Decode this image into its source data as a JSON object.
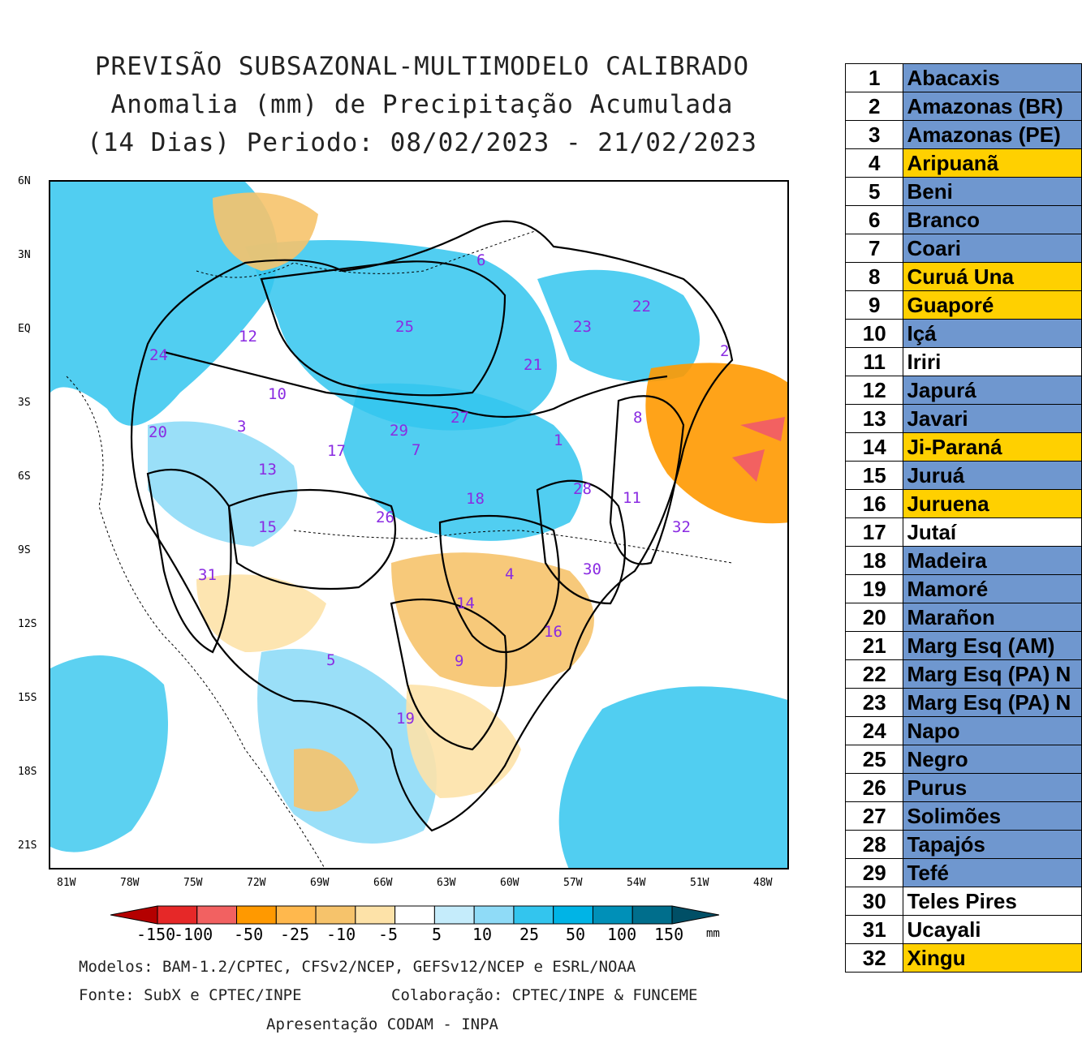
{
  "title": {
    "line1": "PREVISÃO SUBSAZONAL-MULTIMODELO CALIBRADO",
    "line2": "Anomalia (mm) de Precipitação Acumulada",
    "line3": "(14 Dias) Periodo: 08/02/2023 - 21/02/2023"
  },
  "map": {
    "lat_labels": [
      "6N",
      "3N",
      "EQ",
      "3S",
      "6S",
      "9S",
      "12S",
      "15S",
      "18S",
      "21S"
    ],
    "lon_labels": [
      "81W",
      "78W",
      "75W",
      "72W",
      "69W",
      "66W",
      "63W",
      "60W",
      "57W",
      "54W",
      "51W",
      "48W"
    ],
    "basin_numbers": [
      "1",
      "2",
      "3",
      "4",
      "5",
      "6",
      "7",
      "8",
      "9",
      "10",
      "11",
      "12",
      "13",
      "14",
      "15",
      "16",
      "17",
      "18",
      "19",
      "20",
      "21",
      "22",
      "23",
      "24",
      "25",
      "26",
      "27",
      "28",
      "29",
      "30",
      "31",
      "32"
    ]
  },
  "colorbar": {
    "labels": [
      "-150",
      "-100",
      "-50",
      "-25",
      "-10",
      "-5",
      "5",
      "10",
      "25",
      "50",
      "100",
      "150"
    ],
    "unit": "mm",
    "colors": [
      "#b40000",
      "#e62828",
      "#f26161",
      "#ff9900",
      "#ffb84d",
      "#f6c36b",
      "#fde2a8",
      "#ffffff",
      "#c5ecfb",
      "#8fdbf7",
      "#33c5ee",
      "#00b4e6",
      "#0090b8",
      "#006e8c",
      "#004f66"
    ]
  },
  "footer": {
    "models": "Modelos: BAM-1.2/CPTEC, CFSv2/NCEP, GEFSv12/NCEP e ESRL/NOAA",
    "source": "Fonte: SubX e CPTEC/INPE",
    "collab": "Colaboração: CPTEC/INPE & FUNCEME",
    "presentation": "Apresentação CODAM - INPA"
  },
  "legend": {
    "rows": [
      {
        "num": "1",
        "name": "Abacaxis",
        "color": "#6f97cf"
      },
      {
        "num": "2",
        "name": "Amazonas (BR)",
        "color": "#6f97cf"
      },
      {
        "num": "3",
        "name": "Amazonas (PE)",
        "color": "#6f97cf"
      },
      {
        "num": "4",
        "name": "Aripuanã",
        "color": "#ffd000"
      },
      {
        "num": "5",
        "name": "Beni",
        "color": "#6f97cf"
      },
      {
        "num": "6",
        "name": "Branco",
        "color": "#6f97cf"
      },
      {
        "num": "7",
        "name": "Coari",
        "color": "#6f97cf"
      },
      {
        "num": "8",
        "name": "Curuá Una",
        "color": "#ffd000"
      },
      {
        "num": "9",
        "name": "Guaporé",
        "color": "#ffd000"
      },
      {
        "num": "10",
        "name": "Içá",
        "color": "#6f97cf"
      },
      {
        "num": "11",
        "name": "Iriri",
        "color": "#ffffff"
      },
      {
        "num": "12",
        "name": "Japurá",
        "color": "#6f97cf"
      },
      {
        "num": "13",
        "name": "Javari",
        "color": "#6f97cf"
      },
      {
        "num": "14",
        "name": "Ji-Paraná",
        "color": "#ffd000"
      },
      {
        "num": "15",
        "name": "Juruá",
        "color": "#6f97cf"
      },
      {
        "num": "16",
        "name": "Juruena",
        "color": "#ffd000"
      },
      {
        "num": "17",
        "name": "Jutaí",
        "color": "#ffffff"
      },
      {
        "num": "18",
        "name": "Madeira",
        "color": "#6f97cf"
      },
      {
        "num": "19",
        "name": "Mamoré",
        "color": "#6f97cf"
      },
      {
        "num": "20",
        "name": "Marañon",
        "color": "#6f97cf"
      },
      {
        "num": "21",
        "name": "Marg Esq (AM)",
        "color": "#6f97cf"
      },
      {
        "num": "22",
        "name": "Marg Esq (PA) N",
        "color": "#6f97cf"
      },
      {
        "num": "23",
        "name": "Marg Esq (PA) N",
        "color": "#6f97cf"
      },
      {
        "num": "24",
        "name": "Napo",
        "color": "#6f97cf"
      },
      {
        "num": "25",
        "name": "Negro",
        "color": "#6f97cf"
      },
      {
        "num": "26",
        "name": "Purus",
        "color": "#6f97cf"
      },
      {
        "num": "27",
        "name": "Solimões",
        "color": "#6f97cf"
      },
      {
        "num": "28",
        "name": "Tapajós",
        "color": "#6f97cf"
      },
      {
        "num": "29",
        "name": "Tefé",
        "color": "#6f97cf"
      },
      {
        "num": "30",
        "name": "Teles Pires",
        "color": "#ffffff"
      },
      {
        "num": "31",
        "name": "Ucayali",
        "color": "#ffffff"
      },
      {
        "num": "32",
        "name": "Xingu",
        "color": "#ffd000"
      }
    ]
  }
}
